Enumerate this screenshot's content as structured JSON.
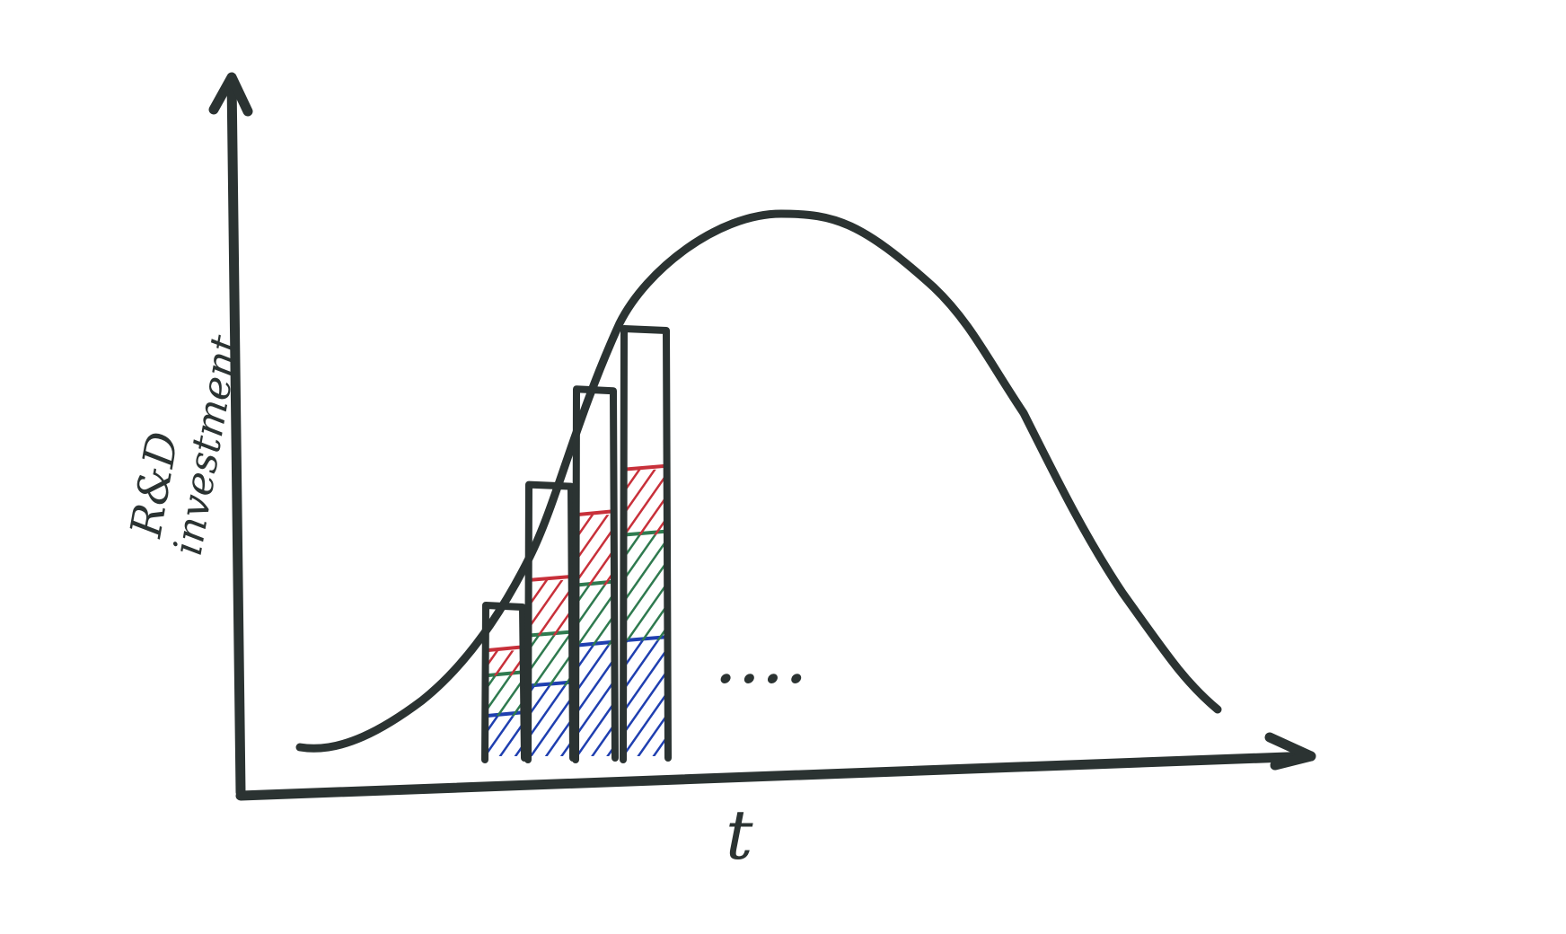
{
  "axes": {
    "y_label_line1": "R&D",
    "y_label_line2": "investment",
    "x_label": "t"
  },
  "ellipsis": "....",
  "colors": {
    "ink": "#2b3332",
    "red": "#c8303a",
    "green": "#2f7a4f",
    "blue": "#1f3fb0"
  },
  "bars": [
    {
      "total": 0.3,
      "segments": {
        "blue": 0.08,
        "green": 0.08,
        "red": 0.05
      }
    },
    {
      "total": 0.54,
      "segments": {
        "blue": 0.14,
        "green": 0.1,
        "red": 0.11
      }
    },
    {
      "total": 0.73,
      "segments": {
        "blue": 0.22,
        "green": 0.12,
        "red": 0.14
      }
    },
    {
      "total": 0.85,
      "segments": {
        "blue": 0.23,
        "green": 0.21,
        "red": 0.13
      }
    }
  ]
}
